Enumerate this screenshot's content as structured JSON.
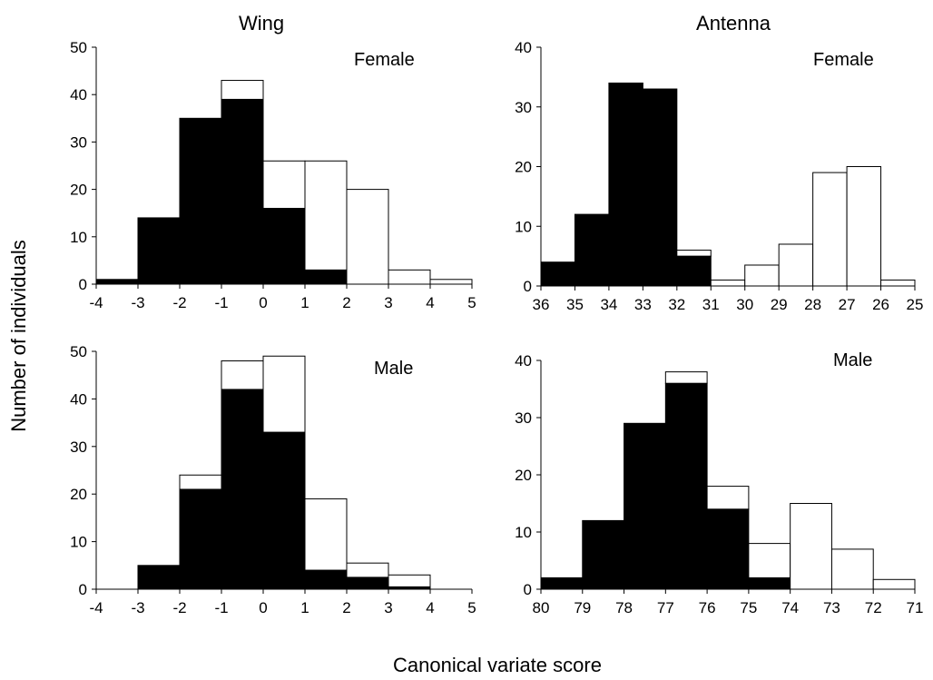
{
  "figure": {
    "column_titles": [
      "Wing",
      "Antenna"
    ],
    "ylabel": "Number of individuals",
    "xlabel": "Canonical variate score"
  },
  "chart_data": [
    {
      "type": "bar",
      "subtype": "stacked-histogram",
      "panel": "wing-female",
      "column_title": "Wing",
      "sex_label": "Female",
      "bin_edges": [
        -4,
        -3,
        -2,
        -1,
        0,
        1,
        2,
        3,
        4,
        5
      ],
      "x_tick_labels": [
        "-4",
        "-3",
        "-2",
        "-1",
        "0",
        "1",
        "2",
        "3",
        "4",
        "5"
      ],
      "ylim": [
        0,
        50
      ],
      "y_ticks": [
        0,
        10,
        20,
        30,
        40,
        50
      ],
      "series": [
        {
          "fill": "black",
          "values": [
            1,
            14,
            35,
            39,
            16,
            3,
            0,
            0,
            0
          ]
        },
        {
          "fill": "white",
          "values": [
            0,
            0,
            0,
            4,
            10,
            23,
            20,
            3,
            1
          ]
        }
      ],
      "totals": [
        1,
        14,
        35,
        43,
        26,
        26,
        20,
        3,
        1
      ]
    },
    {
      "type": "bar",
      "subtype": "stacked-histogram",
      "panel": "antenna-female",
      "column_title": "Antenna",
      "sex_label": "Female",
      "bin_edges": [
        36,
        35,
        34,
        33,
        32,
        31,
        30,
        29,
        28,
        27,
        26,
        25
      ],
      "x_tick_labels": [
        "36",
        "35",
        "34",
        "33",
        "32",
        "31",
        "30",
        "29",
        "28",
        "27",
        "26",
        "25"
      ],
      "ylim": [
        0,
        40
      ],
      "y_ticks": [
        0,
        10,
        20,
        30,
        40
      ],
      "series": [
        {
          "fill": "black",
          "values": [
            4,
            12,
            34,
            33,
            5,
            0,
            0,
            0,
            0,
            0,
            0
          ]
        },
        {
          "fill": "white",
          "values": [
            0,
            0,
            0,
            0,
            1,
            1,
            3.5,
            7,
            19,
            20,
            1
          ]
        }
      ],
      "totals": [
        4,
        12,
        34,
        33,
        6,
        1,
        3.5,
        7,
        19,
        20,
        1
      ]
    },
    {
      "type": "bar",
      "subtype": "stacked-histogram",
      "panel": "wing-male",
      "column_title": "Wing",
      "sex_label": "Male",
      "bin_edges": [
        -4,
        -3,
        -2,
        -1,
        0,
        1,
        2,
        3,
        4,
        5
      ],
      "x_tick_labels": [
        "-4",
        "-3",
        "-2",
        "-1",
        "0",
        "1",
        "2",
        "3",
        "4",
        "5"
      ],
      "ylim": [
        0,
        50
      ],
      "y_ticks": [
        0,
        10,
        20,
        30,
        40,
        50
      ],
      "series": [
        {
          "fill": "black",
          "values": [
            0,
            5,
            21,
            42,
            33,
            4,
            2.5,
            0.5,
            0
          ]
        },
        {
          "fill": "white",
          "values": [
            0,
            0,
            3,
            6,
            16,
            15,
            3,
            2.5,
            0
          ]
        }
      ],
      "totals": [
        0,
        5,
        24,
        48,
        49,
        19,
        5.5,
        3,
        0
      ]
    },
    {
      "type": "bar",
      "subtype": "stacked-histogram",
      "panel": "antenna-male",
      "column_title": "Antenna",
      "sex_label": "Male",
      "bin_edges": [
        80,
        79,
        78,
        77,
        76,
        75,
        74,
        73,
        72,
        71
      ],
      "x_tick_labels": [
        "80",
        "79",
        "78",
        "77",
        "76",
        "75",
        "74",
        "73",
        "72",
        "71"
      ],
      "ylim": [
        0,
        40
      ],
      "y_ticks": [
        0,
        10,
        20,
        30,
        40
      ],
      "series": [
        {
          "fill": "black",
          "values": [
            2,
            12,
            29,
            36,
            14,
            2,
            0,
            0,
            0
          ]
        },
        {
          "fill": "white",
          "values": [
            0,
            0,
            0,
            2,
            4,
            6,
            15,
            7,
            1.7
          ]
        }
      ],
      "totals": [
        2,
        12,
        29,
        38,
        18,
        8,
        15,
        7,
        1.7
      ]
    }
  ]
}
